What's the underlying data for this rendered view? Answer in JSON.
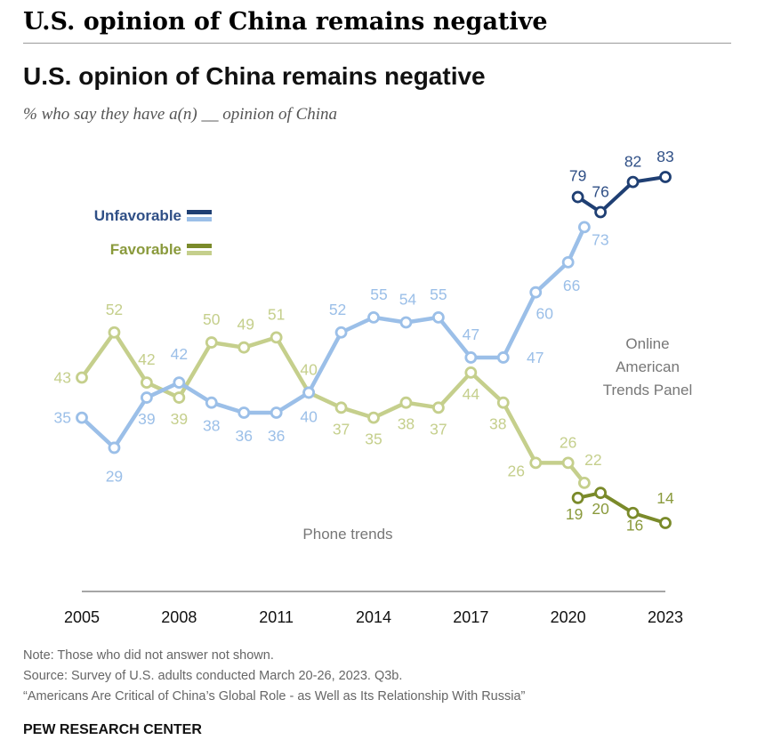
{
  "page_header": "U.S. opinion of China remains negative",
  "notes": {
    "note": "Note: Those who did not answer not shown.",
    "source": "Source: Survey of U.S. adults conducted March 20-26, 2023. Q3b.",
    "report": "“Americans Are Critical of China’s Global Role - as Well as Its Relationship With Russia”"
  },
  "brand": "PEW RESEARCH CENTER",
  "chart_data": {
    "type": "line",
    "title": "U.S. opinion of China remains negative",
    "subtitle": "% who say they have a(n) __ opinion of China",
    "xlim": [
      2005,
      2023
    ],
    "ylim": [
      14,
      83
    ],
    "x_ticks": [
      "2005",
      "2008",
      "2011",
      "2014",
      "2017",
      "2020",
      "2023"
    ],
    "grid": false,
    "annotations": {
      "online": [
        "Online",
        "American",
        "Trends Panel"
      ],
      "phone": "Phone trends"
    },
    "colors": {
      "unfavorable_online": "#1f3f73",
      "unfavorable_phone": "#9bbfe8",
      "favorable_online": "#7a8a2a",
      "favorable_phone": "#c5cf8c",
      "label_unfavorable": "#2f4f86",
      "label_favorable": "#8a9a3c",
      "axis": "#888888"
    },
    "legend": [
      {
        "label": "Unfavorable",
        "key": "unfavorable"
      },
      {
        "label": "Favorable",
        "key": "favorable"
      }
    ],
    "series": [
      {
        "key": "unfavorable_phone",
        "x": [
          2005,
          2006,
          2007,
          2008,
          2009,
          2010,
          2011,
          2012,
          2013,
          2014,
          2015,
          2016,
          2017,
          2018,
          2019,
          2020,
          2020.5
        ],
        "y": [
          35,
          29,
          39,
          42,
          38,
          36,
          36,
          40,
          52,
          55,
          54,
          55,
          47,
          47,
          60,
          66,
          73
        ],
        "labels": [
          "35",
          "29",
          "39",
          "42",
          "38",
          "36",
          "36",
          "40",
          "52",
          "55",
          "54",
          "55",
          "47",
          "47",
          "60",
          "66",
          "73"
        ]
      },
      {
        "key": "favorable_phone",
        "x": [
          2005,
          2006,
          2007,
          2008,
          2009,
          2010,
          2011,
          2012,
          2013,
          2014,
          2015,
          2016,
          2017,
          2018,
          2019,
          2020,
          2020.5
        ],
        "y": [
          43,
          52,
          42,
          39,
          50,
          49,
          51,
          40,
          37,
          35,
          38,
          37,
          44,
          38,
          26,
          26,
          22
        ],
        "labels": [
          "43",
          "52",
          "42",
          "39",
          "50",
          "49",
          "51",
          "40",
          "37",
          "35",
          "38",
          "37",
          "44",
          "38",
          "26",
          "26",
          "22"
        ]
      },
      {
        "key": "unfavorable_online",
        "x": [
          2020.3,
          2021,
          2022,
          2023
        ],
        "y": [
          79,
          76,
          82,
          83
        ],
        "labels": [
          "79",
          "76",
          "82",
          "83"
        ]
      },
      {
        "key": "favorable_online",
        "x": [
          2020.3,
          2021,
          2022,
          2023
        ],
        "y": [
          19,
          20,
          16,
          14
        ],
        "labels": [
          "19",
          "20",
          "16",
          "14"
        ]
      }
    ]
  }
}
